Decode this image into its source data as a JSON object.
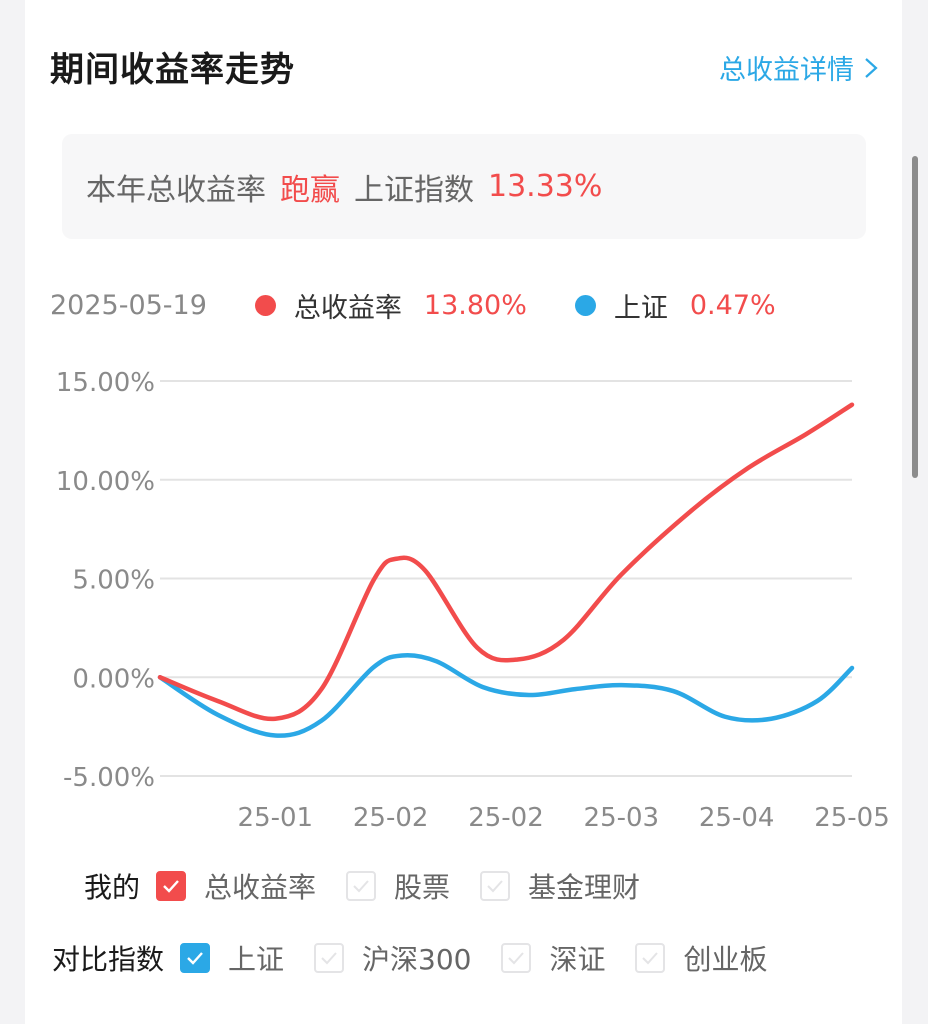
{
  "card": {
    "title": "期间收益率走势",
    "detail_link": "总收益详情"
  },
  "summary": {
    "prefix": "本年总收益率",
    "status": "跑赢",
    "index_name": "上证指数",
    "value": "13.33%"
  },
  "legend": {
    "date": "2025-05-19",
    "series1_name": "总收益率",
    "series1_value": "13.80%",
    "series2_name": "上证",
    "series2_value": "0.47%"
  },
  "colors": {
    "red": "#f24c4c",
    "blue": "#2ba8e6"
  },
  "chart_data": {
    "type": "line",
    "ylim": [
      -5,
      15
    ],
    "yticks": [
      15,
      10,
      5,
      0,
      -5
    ],
    "ytick_labels": [
      "15.00%",
      "10.00%",
      "5.00%",
      "0.00%",
      "-5.00%"
    ],
    "xtick_labels": [
      "25-01",
      "25-02",
      "25-02",
      "25-03",
      "25-04",
      "25-05"
    ],
    "grid": true,
    "series": [
      {
        "name": "总收益率",
        "color": "#f24c4c",
        "points": [
          [
            0,
            0
          ],
          [
            0.5,
            -1.2
          ],
          [
            1,
            -2.1
          ],
          [
            1.4,
            -0.6
          ],
          [
            1.85,
            4.9
          ],
          [
            2.05,
            6.0
          ],
          [
            2.3,
            5.4
          ],
          [
            2.75,
            1.5
          ],
          [
            3.1,
            0.9
          ],
          [
            3.5,
            1.9
          ],
          [
            4.0,
            5.2
          ],
          [
            4.6,
            8.4
          ],
          [
            5.1,
            10.6
          ],
          [
            5.6,
            12.3
          ],
          [
            6.0,
            13.8
          ]
        ]
      },
      {
        "name": "上证",
        "color": "#2ba8e6",
        "points": [
          [
            0,
            0
          ],
          [
            0.5,
            -1.9
          ],
          [
            1,
            -2.95
          ],
          [
            1.4,
            -2.2
          ],
          [
            1.85,
            0.5
          ],
          [
            2.1,
            1.1
          ],
          [
            2.4,
            0.8
          ],
          [
            2.8,
            -0.5
          ],
          [
            3.2,
            -0.9
          ],
          [
            3.6,
            -0.6
          ],
          [
            4.0,
            -0.4
          ],
          [
            4.45,
            -0.7
          ],
          [
            4.9,
            -2.0
          ],
          [
            5.3,
            -2.1
          ],
          [
            5.7,
            -1.2
          ],
          [
            6.0,
            0.47
          ]
        ]
      }
    ]
  },
  "filters": {
    "mine_label": "我的",
    "mine_options": [
      "总收益率",
      "股票",
      "基金理财"
    ],
    "compare_label": "对比指数",
    "compare_options": [
      "上证",
      "沪深300",
      "深证",
      "创业板"
    ]
  }
}
